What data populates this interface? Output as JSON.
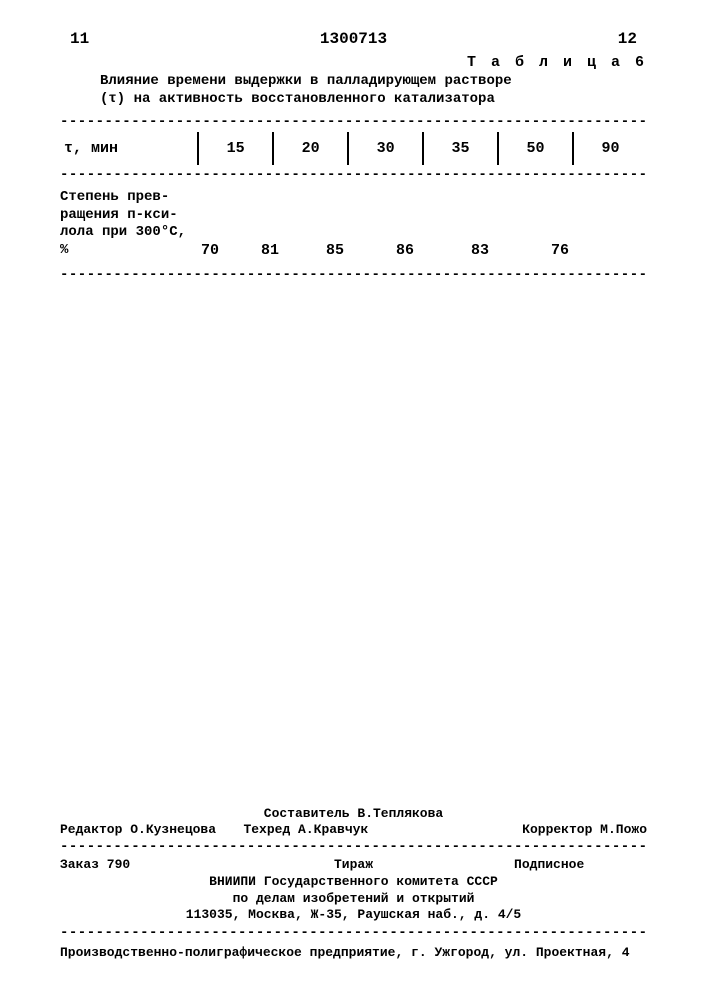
{
  "pagenum_left": "11",
  "docnum": "1300713",
  "pagenum_right": "12",
  "table_title": "Т а б л и ц а  6",
  "caption_line1": "Влияние времени выдержки в палладирующем растворе",
  "caption_line2": "(τ) на активность восстановленного катализатора",
  "table": {
    "row_header_label": "τ, мин",
    "cols": [
      "15",
      "20",
      "30",
      "35",
      "50",
      "90"
    ],
    "row2_label": "Степень прев-\nращения п-кси-\nлола при 300°С,\n%",
    "row2_vals": [
      "70",
      "81",
      "85",
      "86",
      "83",
      "76"
    ]
  },
  "dash": "-------------------------------------------------------------------",
  "footer": {
    "compiler": "Составитель В.Теплякова",
    "editor": "Редактор О.Кузнецова",
    "tech": "Техред А.Кравчук",
    "corrector": "Корректор М.Пожо",
    "order": "Заказ 790",
    "tirazh": "Тираж",
    "podpis": "Подписное",
    "inst1": "ВНИИПИ Государственного комитета СССР",
    "inst2": "по делам изобретений и открытий",
    "addr": "113035, Москва, Ж-35, Раушская наб., д. 4/5",
    "print": "Производственно-полиграфическое предприятие, г. Ужгород, ул. Проектная, 4"
  }
}
